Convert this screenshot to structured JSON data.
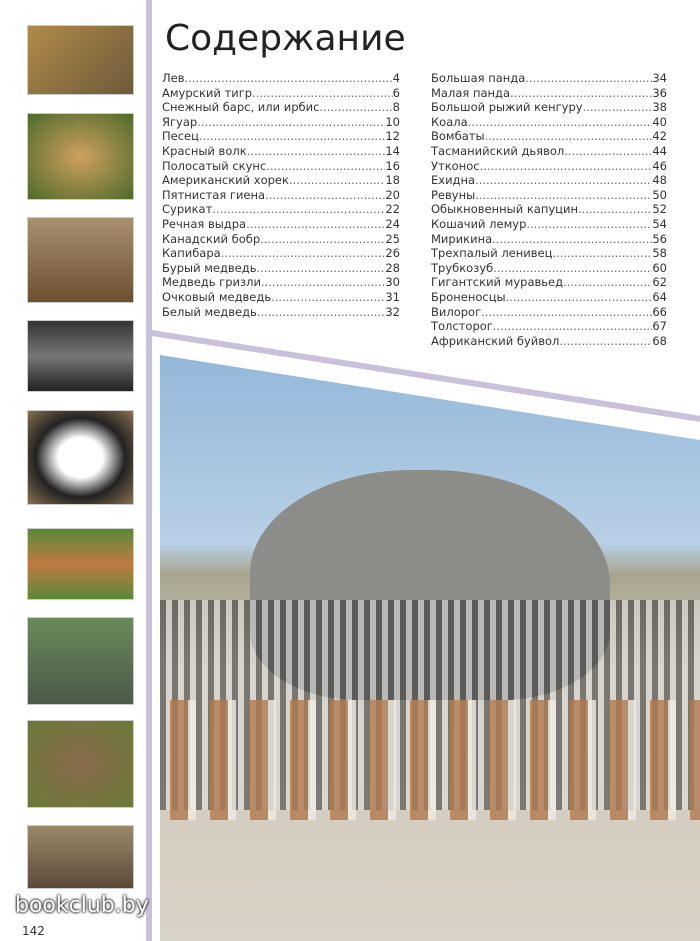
{
  "title": "Содержание",
  "toc_left": [
    {
      "label": "Лев",
      "page": "4"
    },
    {
      "label": "Амурский тигр",
      "page": "6"
    },
    {
      "label": "Снежный барс, или ирбис",
      "page": "8"
    },
    {
      "label": "Ягуар",
      "page": "10"
    },
    {
      "label": "Песец",
      "page": "12"
    },
    {
      "label": "Красный волк",
      "page": "14"
    },
    {
      "label": "Полосатый скунс",
      "page": "16"
    },
    {
      "label": "Американский хорек",
      "page": "18"
    },
    {
      "label": "Пятнистая гиена",
      "page": "20"
    },
    {
      "label": "Сурикат",
      "page": "22"
    },
    {
      "label": "Речная выдра",
      "page": "24"
    },
    {
      "label": "Канадский бобр",
      "page": "25"
    },
    {
      "label": "Капибара",
      "page": "26"
    },
    {
      "label": "Бурый медведь",
      "page": "28"
    },
    {
      "label": "Медведь гризли",
      "page": "30"
    },
    {
      "label": "Очковый медведь",
      "page": "31"
    },
    {
      "label": "Белый медведь",
      "page": "32"
    }
  ],
  "toc_right": [
    {
      "label": "Большая панда",
      "page": "34"
    },
    {
      "label": "Малая панда",
      "page": "36"
    },
    {
      "label": "Большой рыжий кенгуру",
      "page": "38"
    },
    {
      "label": "Коала",
      "page": "40"
    },
    {
      "label": "Вомбаты",
      "page": "42"
    },
    {
      "label": "Тасманийский дьявол",
      "page": "44"
    },
    {
      "label": "Утконос",
      "page": "46"
    },
    {
      "label": "Ехидна",
      "page": "48"
    },
    {
      "label": "Ревуны",
      "page": "50"
    },
    {
      "label": "Обыкновенный капуцин",
      "page": "52"
    },
    {
      "label": "Кошачий лемур",
      "page": "54"
    },
    {
      "label": "Мирикина",
      "page": "56"
    },
    {
      "label": "Трехпалый ленивец",
      "page": "58"
    },
    {
      "label": "Трубкозуб",
      "page": "60"
    },
    {
      "label": "Гигантский муравьед",
      "page": "62"
    },
    {
      "label": "Броненосцы",
      "page": "64"
    },
    {
      "label": "Вилорог",
      "page": "66"
    },
    {
      "label": "Толсторог",
      "page": "67"
    },
    {
      "label": "Африканский буйвол",
      "page": "68"
    }
  ],
  "thumbnails": [
    "lion",
    "jaguar",
    "otter",
    "skunk",
    "panda",
    "red-wolf",
    "river-otter",
    "hedgehog",
    "meerkats"
  ],
  "page_number": "142",
  "watermark": "bookclub.by",
  "accent_color": "#c9c0dc"
}
